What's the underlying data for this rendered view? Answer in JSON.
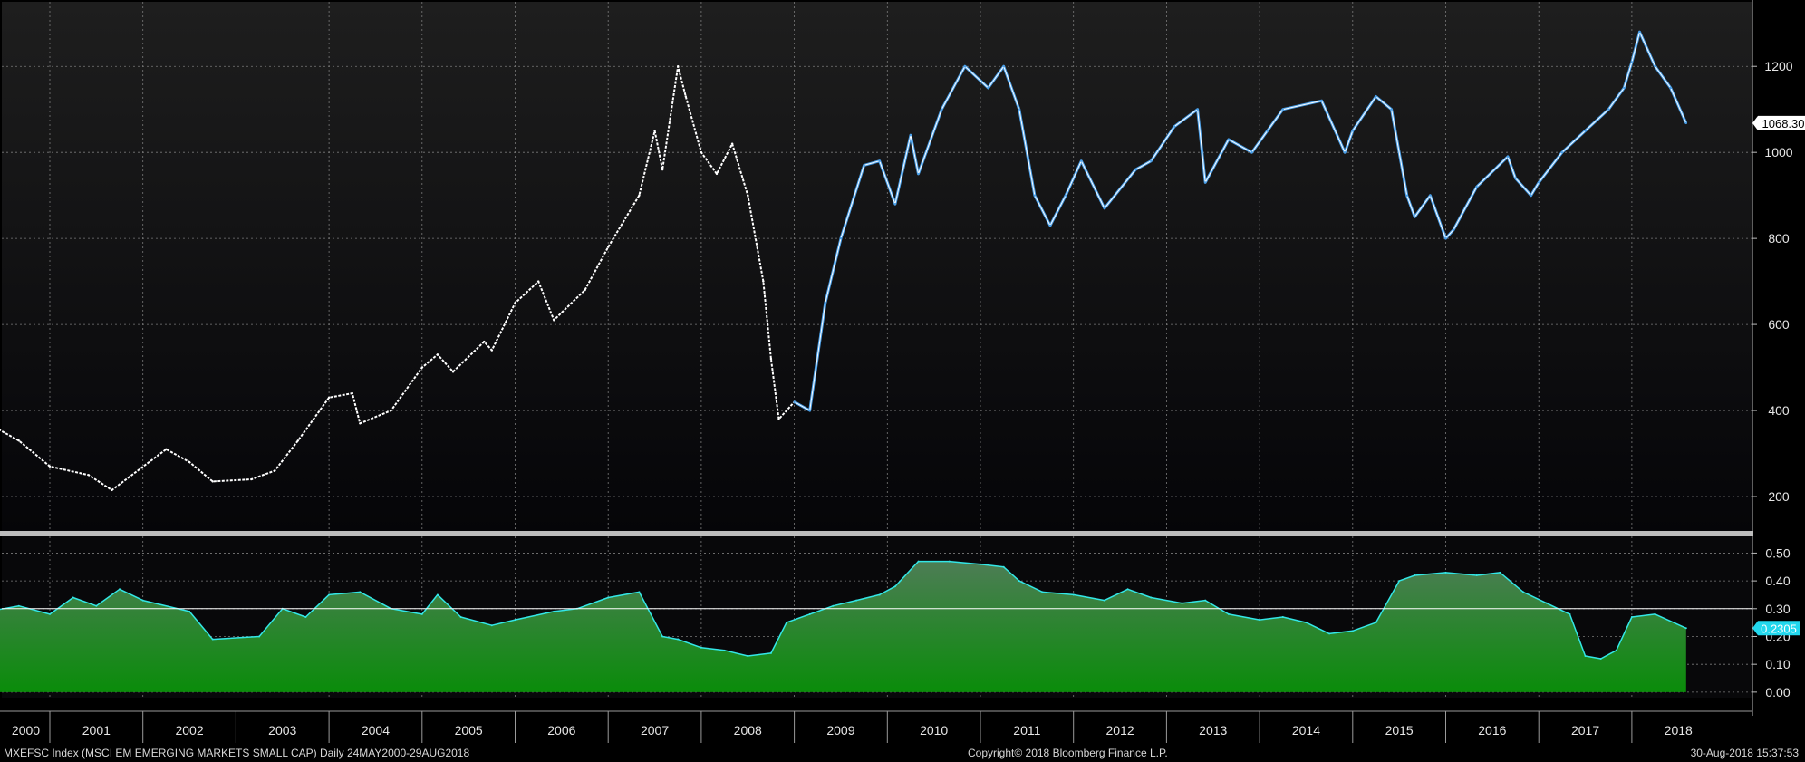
{
  "chart_data": [
    {
      "type": "line",
      "ticker": "MXEFSC Index",
      "y_ticks": [
        200,
        400,
        600,
        800,
        1000,
        1200
      ],
      "ylim": [
        120,
        1350
      ],
      "last_value_label": "1068.30",
      "colors": {
        "pre_2009": "#ffffff",
        "post_2009": "#4a9fe8",
        "grid": "#7a7a7a"
      },
      "series": [
        {
          "x": [
            "2000-05",
            "2000-09",
            "2001-01",
            "2001-06",
            "2001-09",
            "2002-04",
            "2002-07",
            "2002-10",
            "2003-03",
            "2003-06",
            "2003-09",
            "2004-01",
            "2004-04",
            "2004-05",
            "2004-09",
            "2005-01",
            "2005-03",
            "2005-05",
            "2005-09",
            "2005-10",
            "2006-01",
            "2006-04",
            "2006-06",
            "2006-10",
            "2007-01",
            "2007-05",
            "2007-07",
            "2007-08",
            "2007-10",
            "2007-11",
            "2008-01",
            "2008-03",
            "2008-05",
            "2008-07",
            "2008-09",
            "2008-10",
            "2008-11",
            "2009-01",
            "2009-03",
            "2009-05",
            "2009-07",
            "2009-10",
            "2009-12",
            "2010-02",
            "2010-04",
            "2010-05",
            "2010-08",
            "2010-11",
            "2011-02",
            "2011-04",
            "2011-06",
            "2011-08",
            "2011-10",
            "2011-12",
            "2012-02",
            "2012-05",
            "2012-09",
            "2012-11",
            "2013-02",
            "2013-05",
            "2013-06",
            "2013-09",
            "2013-12",
            "2014-02",
            "2014-04",
            "2014-09",
            "2014-12",
            "2015-01",
            "2015-04",
            "2015-06",
            "2015-08",
            "2015-09",
            "2015-11",
            "2016-01",
            "2016-02",
            "2016-05",
            "2016-09",
            "2016-10",
            "2016-12",
            "2017-01",
            "2017-04",
            "2017-07",
            "2017-10",
            "2017-12",
            "2018-01",
            "2018-02",
            "2018-04",
            "2018-06",
            "2018-08"
          ],
          "values": [
            370,
            330,
            270,
            250,
            215,
            310,
            280,
            235,
            240,
            260,
            330,
            430,
            440,
            370,
            400,
            500,
            530,
            490,
            560,
            540,
            650,
            700,
            610,
            680,
            780,
            900,
            1050,
            960,
            1200,
            1130,
            1000,
            950,
            1020,
            900,
            700,
            520,
            380,
            420,
            400,
            650,
            800,
            970,
            980,
            880,
            1040,
            950,
            1100,
            1200,
            1150,
            1200,
            1100,
            900,
            830,
            900,
            980,
            870,
            960,
            980,
            1060,
            1100,
            930,
            1030,
            1000,
            1050,
            1100,
            1120,
            1000,
            1050,
            1130,
            1100,
            900,
            850,
            900,
            800,
            820,
            920,
            990,
            940,
            900,
            930,
            1000,
            1050,
            1100,
            1150,
            1210,
            1280,
            1200,
            1150,
            1068
          ]
        }
      ]
    },
    {
      "type": "area",
      "y_ticks": [
        0.0,
        0.1,
        0.2,
        0.3,
        0.4,
        0.5
      ],
      "y_tick_labels": [
        "0.00",
        "0.10",
        "0.20",
        "0.30",
        "0.40",
        "0.50"
      ],
      "ylim": [
        -0.02,
        0.56
      ],
      "reference_line": 0.3,
      "last_value_label": "0.2305",
      "colors": {
        "line": "#33e6e6",
        "fill_top": "#3f7f4f",
        "fill_bottom": "#0a8a0a"
      },
      "series": [
        {
          "x": [
            "2000-05",
            "2000-09",
            "2001-01",
            "2001-04",
            "2001-07",
            "2001-10",
            "2002-01",
            "2002-07",
            "2002-10",
            "2003-04",
            "2003-07",
            "2003-10",
            "2004-01",
            "2004-05",
            "2004-09",
            "2005-01",
            "2005-03",
            "2005-06",
            "2005-10",
            "2006-01",
            "2006-06",
            "2006-09",
            "2007-01",
            "2007-05",
            "2007-08",
            "2007-10",
            "2008-01",
            "2008-04",
            "2008-07",
            "2008-10",
            "2008-12",
            "2009-03",
            "2009-06",
            "2009-09",
            "2009-12",
            "2010-02",
            "2010-05",
            "2010-09",
            "2011-01",
            "2011-04",
            "2011-06",
            "2011-09",
            "2012-01",
            "2012-05",
            "2012-08",
            "2012-11",
            "2013-03",
            "2013-06",
            "2013-09",
            "2014-01",
            "2014-04",
            "2014-07",
            "2014-10",
            "2015-01",
            "2015-04",
            "2015-07",
            "2015-09",
            "2016-01",
            "2016-05",
            "2016-08",
            "2016-11",
            "2017-02",
            "2017-05",
            "2017-07",
            "2017-09",
            "2017-11",
            "2018-01",
            "2018-04",
            "2018-08"
          ],
          "values": [
            0.29,
            0.31,
            0.28,
            0.34,
            0.31,
            0.37,
            0.33,
            0.29,
            0.19,
            0.2,
            0.3,
            0.27,
            0.35,
            0.36,
            0.3,
            0.28,
            0.35,
            0.27,
            0.24,
            0.26,
            0.29,
            0.3,
            0.34,
            0.36,
            0.2,
            0.19,
            0.16,
            0.15,
            0.13,
            0.14,
            0.25,
            0.28,
            0.31,
            0.33,
            0.35,
            0.38,
            0.47,
            0.47,
            0.46,
            0.45,
            0.4,
            0.36,
            0.35,
            0.33,
            0.37,
            0.34,
            0.32,
            0.33,
            0.28,
            0.26,
            0.27,
            0.25,
            0.21,
            0.22,
            0.25,
            0.4,
            0.42,
            0.43,
            0.42,
            0.43,
            0.36,
            0.32,
            0.28,
            0.13,
            0.12,
            0.15,
            0.27,
            0.28,
            0.23
          ]
        }
      ]
    }
  ],
  "x_axis": {
    "years": [
      "2000",
      "2001",
      "2002",
      "2003",
      "2004",
      "2005",
      "2006",
      "2007",
      "2008",
      "2009",
      "2010",
      "2011",
      "2012",
      "2013",
      "2014",
      "2015",
      "2016",
      "2017",
      "2018"
    ]
  },
  "footer": {
    "left": "MXEFSC Index (MSCI EM EMERGING MARKETS SMALL CAP)  Daily 24MAY2000-29AUG2018",
    "center": "Copyright© 2018 Bloomberg Finance L.P.",
    "right": "30-Aug-2018 15:37:53"
  }
}
